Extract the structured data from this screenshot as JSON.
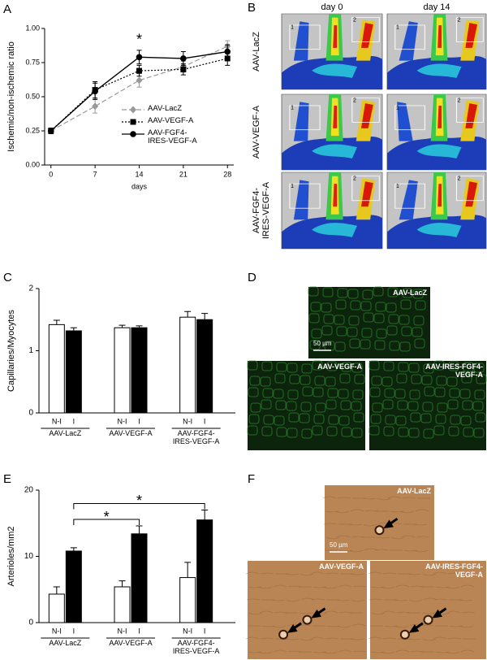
{
  "chart_data": [
    {
      "type": "line",
      "ylabel": "Ischemic/non-ischemic ratio",
      "xlabel": "days",
      "x": [
        0,
        7,
        14,
        21,
        28
      ],
      "xlim": [
        -1,
        29
      ],
      "xticks": [
        0,
        7,
        14,
        21,
        28
      ],
      "ylim": [
        0,
        1
      ],
      "yticks": [
        {
          "value": 0,
          "label": "0.00"
        },
        {
          "value": 0.25,
          "label": "0.25"
        },
        {
          "value": 0.5,
          "label": "0.50"
        },
        {
          "value": 0.75,
          "label": "0.75"
        },
        {
          "value": 1,
          "label": "1.00"
        }
      ],
      "series": [
        {
          "name": "AAV-LacZ",
          "color": "#999999",
          "line": "dashed",
          "marker": "diamond",
          "values": [
            0.25,
            0.43,
            0.62,
            0.72,
            0.87
          ],
          "errors": [
            0.02,
            0.05,
            0.05,
            0.04,
            0.04
          ]
        },
        {
          "name": "AAV-VEGF-A",
          "color": "#000000",
          "line": "dotted",
          "marker": "square",
          "values": [
            0.25,
            0.55,
            0.69,
            0.7,
            0.78
          ],
          "errors": [
            0.02,
            0.06,
            0.04,
            0.04,
            0.05
          ]
        },
        {
          "name": "AAV-FGF4-IRES-VEGF-A",
          "color": "#000000",
          "line": "solid",
          "marker": "circle",
          "values": [
            0.25,
            0.54,
            0.79,
            0.78,
            0.83
          ],
          "errors": [
            0.02,
            0.06,
            0.05,
            0.05,
            0.05
          ]
        }
      ],
      "annotations": [
        "*"
      ]
    },
    {
      "type": "bar",
      "ylabel": "Capillaries/Myocytes",
      "categories": [
        "AAV-LacZ",
        "AAV-VEGF-A",
        "AAV-FGF4-IRES-VEGF-A"
      ],
      "ylim": [
        0,
        2
      ],
      "yticks": [
        0,
        1,
        2
      ],
      "series": [
        {
          "name": "N-I",
          "color": "#ffffff",
          "values": [
            1.42,
            1.37,
            1.54
          ],
          "errors": [
            0.07,
            0.04,
            0.09
          ]
        },
        {
          "name": "I",
          "color": "#000000",
          "values": [
            1.32,
            1.37,
            1.5
          ],
          "errors": [
            0.05,
            0.03,
            0.1
          ]
        }
      ]
    },
    {
      "type": "bar",
      "ylabel": "Arterioles/mm2",
      "categories": [
        "AAV-LacZ",
        "AAV-VEGF-A",
        "AAV-FGF4-IRES-VEGF-A"
      ],
      "ylim": [
        0,
        20
      ],
      "yticks": [
        0,
        10,
        20
      ],
      "series": [
        {
          "name": "N-I",
          "color": "#ffffff",
          "values": [
            4.3,
            5.4,
            6.8
          ],
          "errors": [
            1.1,
            0.9,
            2.3
          ]
        },
        {
          "name": "I",
          "color": "#000000",
          "values": [
            10.8,
            13.4,
            15.5
          ],
          "errors": [
            0.5,
            1.2,
            1.5
          ]
        }
      ],
      "annotations": [
        "*",
        "*"
      ]
    }
  ],
  "panel_labels": [
    "A",
    "B",
    "C",
    "D",
    "E",
    "F"
  ],
  "panel_b": {
    "columns": [
      "day 0",
      "day 14"
    ],
    "rows": [
      "AAV-LacZ",
      "AAV-VEGF-A",
      "AAV-FGF4-IRES-VEGF-A"
    ],
    "regions": [
      "1",
      "2"
    ]
  },
  "panel_d": {
    "images": [
      "AAV-LacZ",
      "AAV-VEGF-A",
      "AAV-IRES-FGF4-VEGF-A"
    ],
    "scale_bar": "50 µm"
  },
  "panel_f": {
    "images": [
      "AAV-LacZ",
      "AAV-VEGF-A",
      "AAV-IRES-FGF4-VEGF-A"
    ],
    "scale_bar": "50 µm"
  }
}
